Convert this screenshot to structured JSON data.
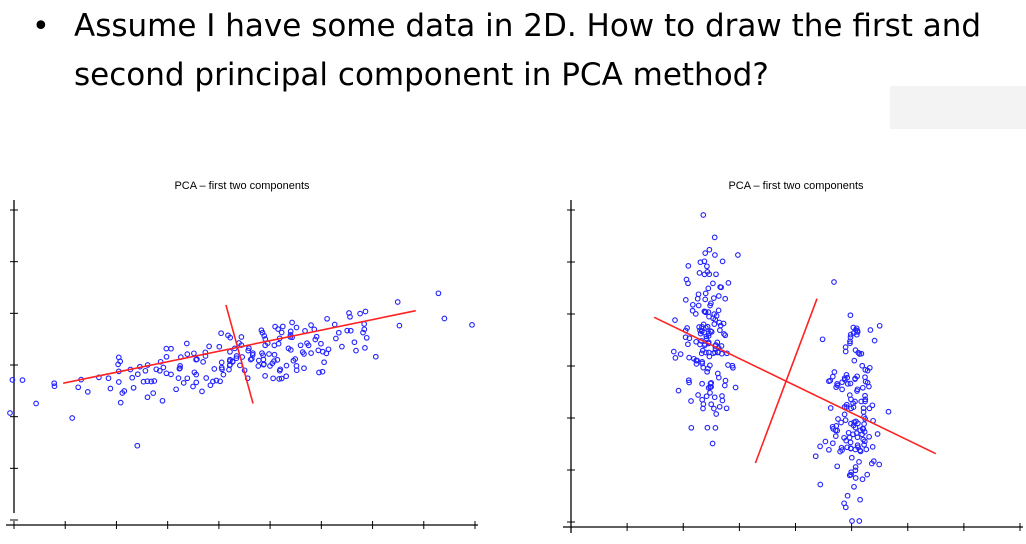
{
  "slide": {
    "bullet": "•",
    "question": "Assume I have some data in 2D. How to draw the first and second principal component in PCA method?"
  },
  "colors": {
    "points": "#2222ff",
    "components": "#ff2222",
    "axes": "#000000",
    "gray_box": "#f3f3f3"
  },
  "chart_data": [
    {
      "type": "scatter",
      "title": "PCA – first two components",
      "xlim": [
        0,
        1
      ],
      "ylim": [
        0,
        1
      ],
      "xlabel": "",
      "ylabel": "",
      "grid": false,
      "cluster": {
        "kind": "elongated",
        "count": 190,
        "center": [
          0.5,
          0.51
        ],
        "direction": [
          1,
          0.28
        ],
        "spread_major": 0.2,
        "spread_minor": 0.055
      },
      "outliers": [
        {
          "x": 0.04,
          "y": 0.35
        },
        {
          "x": 0.08,
          "y": 0.42
        },
        {
          "x": 0.93,
          "y": 0.73
        },
        {
          "x": 0.84,
          "y": 0.7
        },
        {
          "x": 0.12,
          "y": 0.3
        }
      ],
      "components": [
        {
          "name": "first",
          "x": [
            0.1,
            0.88
          ],
          "y": [
            0.42,
            0.67
          ]
        },
        {
          "name": "second",
          "x": [
            0.46,
            0.52
          ],
          "y": [
            0.69,
            0.35
          ]
        }
      ]
    },
    {
      "type": "scatter",
      "title": "PCA – first two components",
      "xlim": [
        0,
        1
      ],
      "ylim": [
        0,
        1
      ],
      "xlabel": "",
      "ylabel": "",
      "grid": false,
      "clusters": [
        {
          "kind": "vertical",
          "count": 150,
          "center": [
            0.3,
            0.6
          ],
          "spread_x": 0.032,
          "spread_y": 0.14
        },
        {
          "kind": "vertical",
          "count": 150,
          "center": [
            0.63,
            0.35
          ],
          "spread_x": 0.032,
          "spread_y": 0.14
        }
      ],
      "components": [
        {
          "name": "first",
          "x": [
            0.18,
            0.82
          ],
          "y": [
            0.67,
            0.23
          ]
        },
        {
          "name": "second",
          "x": [
            0.41,
            0.55
          ],
          "y": [
            0.2,
            0.73
          ]
        }
      ]
    }
  ]
}
